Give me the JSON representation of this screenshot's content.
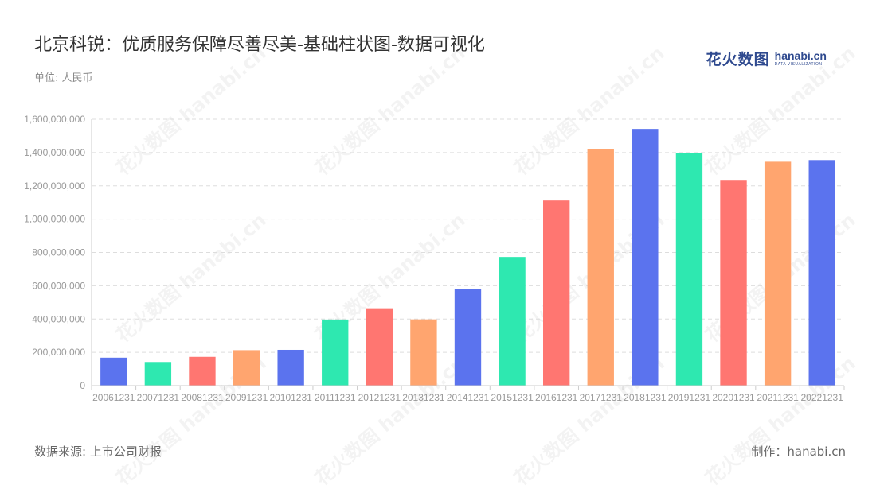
{
  "header": {
    "title": "北京科锐：优质服务保障尽善尽美-基础柱状图-数据可视化",
    "unit": "单位: 人民币"
  },
  "logo": {
    "cn": "花火数图",
    "en": "hanabi.cn",
    "sub": "DATA VISUALIZATION",
    "color": "#2f4a8f"
  },
  "footer": {
    "source": "数据来源: 上市公司财报",
    "credit": "制作：hanabi.cn"
  },
  "chart_data": {
    "type": "bar",
    "categories": [
      "20061231",
      "20071231",
      "20081231",
      "20091231",
      "20101231",
      "20111231",
      "20121231",
      "20131231",
      "20141231",
      "20151231",
      "20161231",
      "20171231",
      "20181231",
      "20191231",
      "20201231",
      "20211231",
      "20221231"
    ],
    "values": [
      168000000,
      142000000,
      173000000,
      213000000,
      215000000,
      397000000,
      465000000,
      398000000,
      582000000,
      773000000,
      1112000000,
      1420000000,
      1542000000,
      1398000000,
      1236000000,
      1345000000,
      1355000000
    ],
    "colors": [
      "#5b73ee",
      "#2ee8b0",
      "#ff7671",
      "#ffa56f"
    ],
    "ylim": [
      0,
      1600000000
    ],
    "yticks": [
      0,
      200000000,
      400000000,
      600000000,
      800000000,
      1000000000,
      1200000000,
      1400000000,
      1600000000
    ],
    "ytick_labels": [
      "0",
      "200,000,000",
      "400,000,000",
      "600,000,000",
      "800,000,000",
      "1,000,000,000",
      "1,200,000,000",
      "1,400,000,000",
      "1,600,000,000"
    ],
    "grid": true
  }
}
